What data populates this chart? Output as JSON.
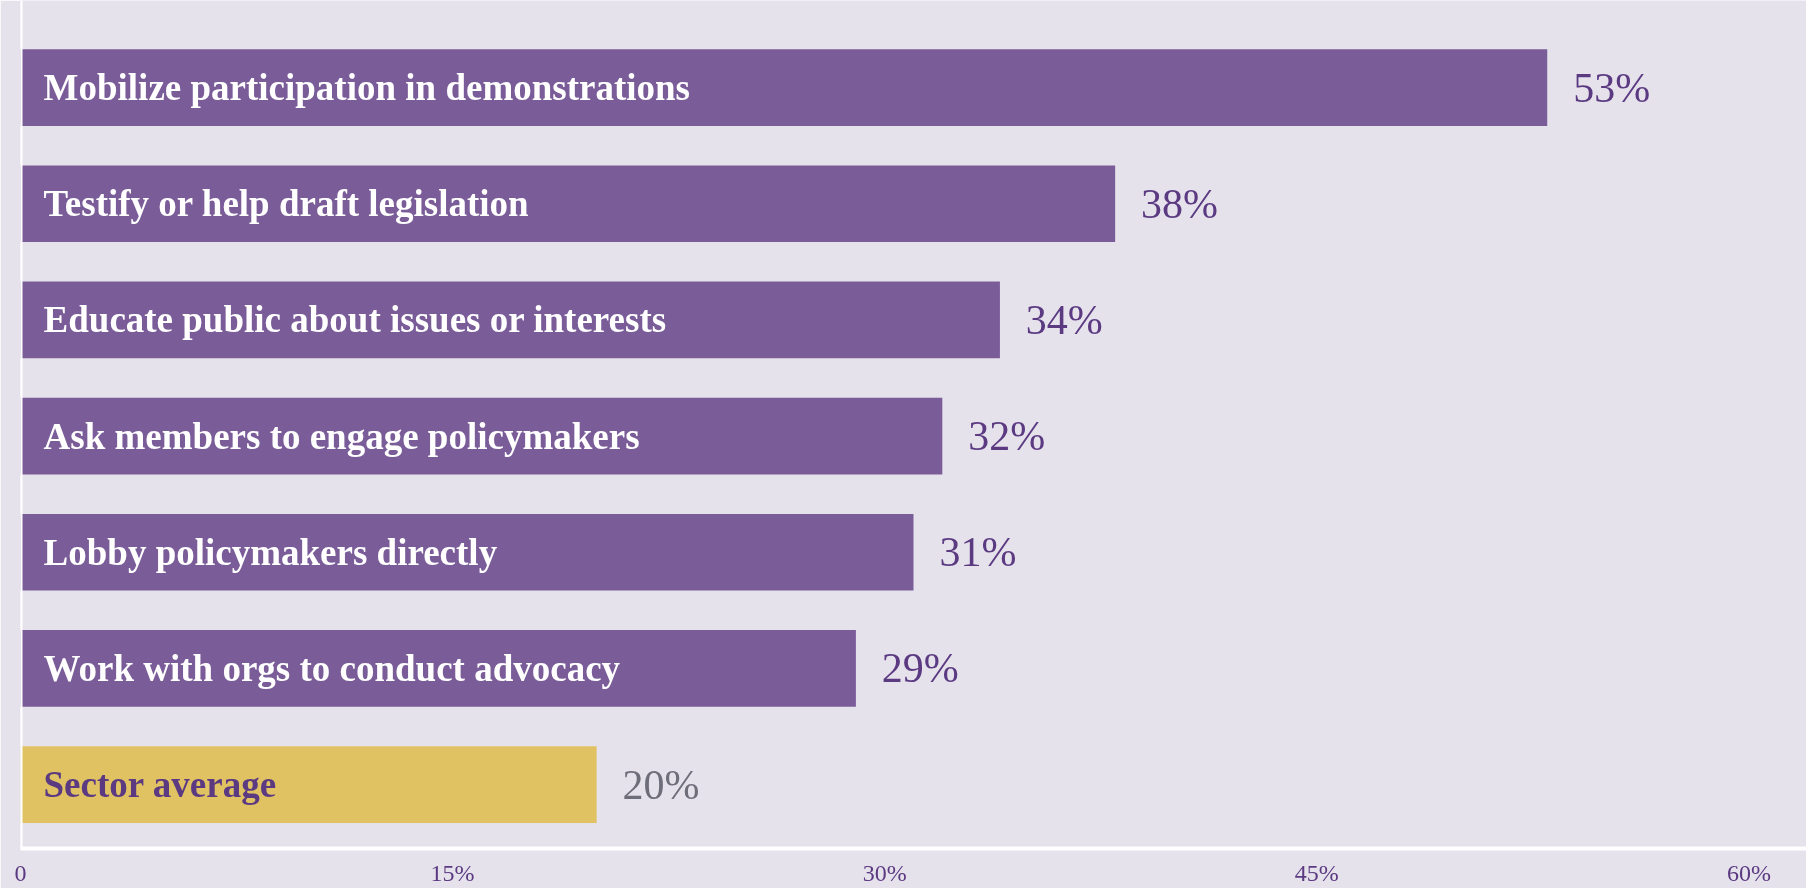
{
  "chart_data": {
    "type": "bar",
    "orientation": "horizontal",
    "categories": [
      "Mobilize participation in demonstrations",
      "Testify or help draft legislation",
      "Educate public about issues or interests",
      "Ask members to engage policymakers",
      "Lobby policymakers directly",
      "Work with orgs to conduct advocacy",
      "Sector average"
    ],
    "values": [
      53,
      38,
      34,
      32,
      31,
      29,
      20
    ],
    "colors": [
      "#7a5c99",
      "#7a5c99",
      "#7a5c99",
      "#7a5c99",
      "#7a5c99",
      "#7a5c99",
      "#e0c262"
    ],
    "value_labels": [
      "53%",
      "38%",
      "34%",
      "32%",
      "31%",
      "29%",
      "20%"
    ],
    "xlim": [
      0,
      62
    ],
    "xticks": [
      0,
      {
        "value": 15,
        "label": "15%"
      },
      {
        "value": 30,
        "label": "30%"
      },
      {
        "value": 45,
        "label": "45%"
      },
      {
        "value": 60,
        "label": "60%"
      }
    ],
    "grid": false
  }
}
